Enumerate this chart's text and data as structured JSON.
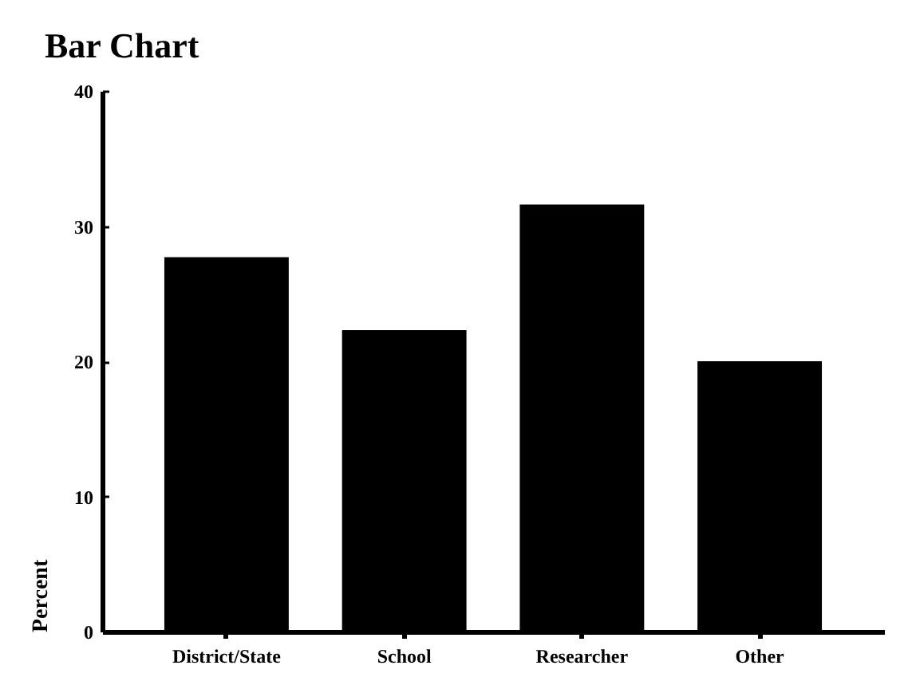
{
  "chart_data": {
    "type": "bar",
    "title": "Bar Chart",
    "ylabel": "Percent",
    "categories": [
      "District/State",
      "School",
      "Researcher",
      "Other"
    ],
    "values": [
      27.7,
      22.3,
      31.6,
      20.0
    ],
    "color": "#000000",
    "ylim": [
      0,
      40
    ],
    "yticks": [
      0,
      10,
      20,
      30,
      40
    ],
    "grid": false
  }
}
